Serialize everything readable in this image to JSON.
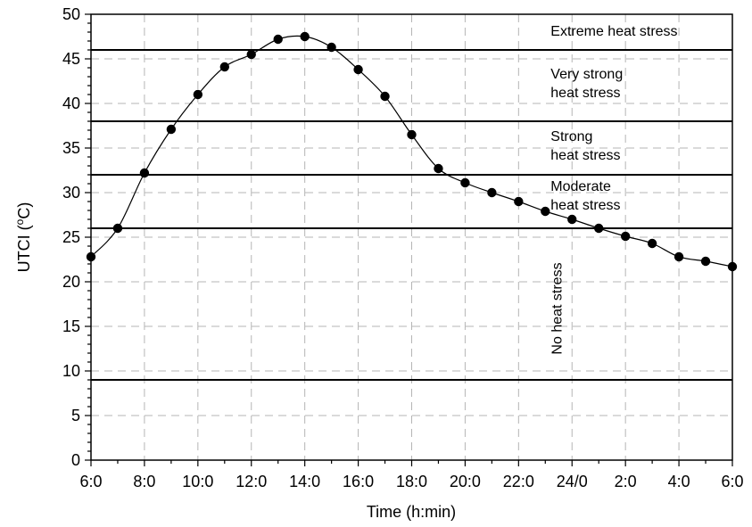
{
  "chart_data": {
    "type": "line",
    "xlabel": "Time (h:min)",
    "ylabel_main": "UTCI (",
    "ylabel_sup": "o",
    "ylabel_tail": "C)",
    "x": [
      0,
      1,
      2,
      3,
      4,
      5,
      6,
      7,
      8,
      9,
      10,
      11,
      12,
      13,
      14,
      15,
      16,
      17,
      18,
      19,
      20,
      21,
      22,
      23,
      24
    ],
    "values": [
      22.8,
      26.0,
      32.2,
      37.1,
      41.0,
      44.1,
      45.5,
      47.2,
      47.5,
      46.3,
      43.8,
      40.8,
      36.5,
      32.7,
      31.1,
      30.0,
      29.0,
      27.9,
      27.0,
      26.0,
      25.1,
      24.3,
      22.8,
      22.3,
      21.7
    ],
    "xticks": [
      0,
      2,
      4,
      6,
      8,
      10,
      12,
      14,
      16,
      18,
      20,
      22,
      24
    ],
    "xtick_labels": [
      "6:0",
      "8:0",
      "10:0",
      "12:0",
      "14:0",
      "16:0",
      "18:0",
      "20:0",
      "22:0",
      "24/0",
      "2:0",
      "4:0",
      "6:0"
    ],
    "xlim": [
      0,
      24
    ],
    "ylim": [
      0,
      50
    ],
    "yticks": [
      0,
      5,
      10,
      15,
      20,
      25,
      30,
      35,
      40,
      45,
      50
    ],
    "ytick_labels": [
      "0",
      "5",
      "10",
      "15",
      "20",
      "25",
      "30",
      "35",
      "40",
      "45",
      "50"
    ],
    "grid": true,
    "thresholds": [
      9,
      26,
      32,
      38,
      46
    ],
    "zone_labels": [
      {
        "lines": [
          "Extreme heat stress"
        ],
        "x": 17.2,
        "y": 47.6
      },
      {
        "lines": [
          "Very strong",
          "heat stress"
        ],
        "x": 17.2,
        "y": 42.8
      },
      {
        "lines": [
          "Strong",
          "heat stress"
        ],
        "x": 17.2,
        "y": 35.8
      },
      {
        "lines": [
          "Moderate",
          "heat stress"
        ],
        "x": 17.2,
        "y": 30.2
      },
      {
        "lines": [
          "No heat stress"
        ],
        "x": 17.6,
        "y": 17.0,
        "rotate": true
      }
    ]
  }
}
